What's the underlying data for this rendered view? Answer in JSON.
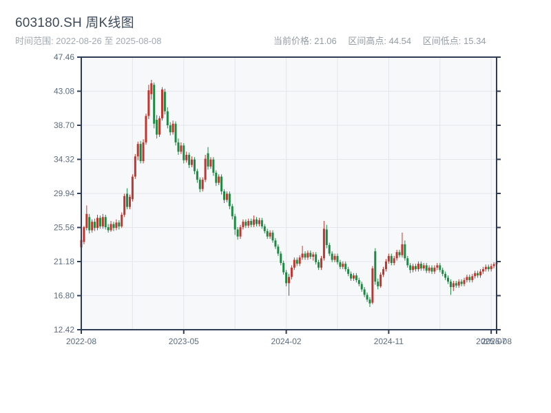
{
  "header": {
    "title": "603180.SH 周K线图",
    "subtitle": "时间范围: 2022-08-26 至 2025-08-08",
    "stats": {
      "current": "当前价格: 21.06",
      "high": "区间高点: 44.54",
      "low": "区间低点: 15.34"
    }
  },
  "chart_data": {
    "type": "candlestick",
    "symbol": "603180.SH",
    "period": "weekly",
    "title": "603180.SH 周K线图",
    "date_start": "2022-08-26",
    "date_end": "2025-08-08",
    "current_price": 21.06,
    "range_high": 44.54,
    "range_low": 15.34,
    "ylim": [
      12.42,
      47.46
    ],
    "y_ticks": [
      12.42,
      16.8,
      21.18,
      25.56,
      29.94,
      34.32,
      38.7,
      43.08,
      47.46
    ],
    "x_ticks": [
      {
        "week": 0,
        "label": "2022-08"
      },
      {
        "week": 38,
        "label": "2023-05"
      },
      {
        "week": 76,
        "label": "2024-02"
      },
      {
        "week": 114,
        "label": "2024-11"
      },
      {
        "week": 152,
        "label": "2025-07"
      },
      {
        "week": 154,
        "label": "2025-08"
      }
    ],
    "grid_x_weeks": [
      0,
      19,
      38,
      57,
      76,
      95,
      114,
      133,
      152
    ],
    "grid": true,
    "legend": "none",
    "colors": {
      "up": "#c2352e",
      "down": "#1d8a44",
      "axis": "#2e3b52",
      "grid": "#e4e6eb",
      "plot_bg": "#f7f8fa",
      "label": "#5b6b7f"
    },
    "candles": [
      [
        23.0,
        24.25,
        22.7,
        23.95
      ],
      [
        23.7,
        25.75,
        23.4,
        25.6
      ],
      [
        25.5,
        28.4,
        25.2,
        27.3
      ],
      [
        26.9,
        27.3,
        24.8,
        25.2
      ],
      [
        25.2,
        26.6,
        24.9,
        26.3
      ],
      [
        26.3,
        26.7,
        25.1,
        25.5
      ],
      [
        25.5,
        27.2,
        25.2,
        26.8
      ],
      [
        26.8,
        27.1,
        25.4,
        25.7
      ],
      [
        25.7,
        27.3,
        25.4,
        26.9
      ],
      [
        26.9,
        27.2,
        25.3,
        25.6
      ],
      [
        25.6,
        26.0,
        24.9,
        25.2
      ],
      [
        25.2,
        26.4,
        25.0,
        26.0
      ],
      [
        26.0,
        26.3,
        25.1,
        25.5
      ],
      [
        25.5,
        26.6,
        25.2,
        26.2
      ],
      [
        26.2,
        26.5,
        25.3,
        25.7
      ],
      [
        25.7,
        27.5,
        25.5,
        27.2
      ],
      [
        27.2,
        29.9,
        26.9,
        29.6
      ],
      [
        29.9,
        30.6,
        27.9,
        28.2
      ],
      [
        28.2,
        29.8,
        27.9,
        29.5
      ],
      [
        29.2,
        32.4,
        28.9,
        32.1
      ],
      [
        32.1,
        35.0,
        31.8,
        34.7
      ],
      [
        34.7,
        36.6,
        34.2,
        36.3
      ],
      [
        36.3,
        36.7,
        33.8,
        34.1
      ],
      [
        34.1,
        36.9,
        33.8,
        36.5
      ],
      [
        36.5,
        40.2,
        36.2,
        39.9
      ],
      [
        39.9,
        43.9,
        39.5,
        43.2
      ],
      [
        42.7,
        44.54,
        42.0,
        44.1
      ],
      [
        43.9,
        44.2,
        38.3,
        38.9
      ],
      [
        39.4,
        40.0,
        37.0,
        37.5
      ],
      [
        37.5,
        39.9,
        37.2,
        39.6
      ],
      [
        39.6,
        43.6,
        39.3,
        43.3
      ],
      [
        43.0,
        43.4,
        40.1,
        40.5
      ],
      [
        40.5,
        41.0,
        38.3,
        38.7
      ],
      [
        38.7,
        39.1,
        37.4,
        37.8
      ],
      [
        37.8,
        39.3,
        37.5,
        38.9
      ],
      [
        38.9,
        39.2,
        36.1,
        36.5
      ],
      [
        36.5,
        37.0,
        34.9,
        35.3
      ],
      [
        35.3,
        36.5,
        35.0,
        36.1
      ],
      [
        36.1,
        36.4,
        33.8,
        34.2
      ],
      [
        34.2,
        35.3,
        33.9,
        34.9
      ],
      [
        34.9,
        35.2,
        33.2,
        33.6
      ],
      [
        33.6,
        34.7,
        33.3,
        34.3
      ],
      [
        34.3,
        34.6,
        32.4,
        32.8
      ],
      [
        32.8,
        33.1,
        31.3,
        31.7
      ],
      [
        31.7,
        32.0,
        30.1,
        30.5
      ],
      [
        30.5,
        32.0,
        30.2,
        31.7
      ],
      [
        31.7,
        34.9,
        31.4,
        34.4
      ],
      [
        35.1,
        35.9,
        33.0,
        33.4
      ],
      [
        33.4,
        34.6,
        33.1,
        34.3
      ],
      [
        34.3,
        34.6,
        32.2,
        32.6
      ],
      [
        32.6,
        32.9,
        30.9,
        31.3
      ],
      [
        31.3,
        32.4,
        31.0,
        32.1
      ],
      [
        32.1,
        32.4,
        29.8,
        30.2
      ],
      [
        30.2,
        30.5,
        28.7,
        29.1
      ],
      [
        29.1,
        30.2,
        28.8,
        29.9
      ],
      [
        29.9,
        30.2,
        27.9,
        28.3
      ],
      [
        28.3,
        28.6,
        26.6,
        27.0
      ],
      [
        27.0,
        27.3,
        24.6,
        25.3
      ],
      [
        25.3,
        25.6,
        24.0,
        24.4
      ],
      [
        24.4,
        25.9,
        24.1,
        25.6
      ],
      [
        25.6,
        26.6,
        25.3,
        26.3
      ],
      [
        26.3,
        26.6,
        25.5,
        25.8
      ],
      [
        25.8,
        26.7,
        25.5,
        26.4
      ],
      [
        26.4,
        26.7,
        25.6,
        25.9
      ],
      [
        25.9,
        27.1,
        25.6,
        26.6
      ],
      [
        26.6,
        26.9,
        25.7,
        26.0
      ],
      [
        26.0,
        26.8,
        25.7,
        26.5
      ],
      [
        26.5,
        26.8,
        25.4,
        25.7
      ],
      [
        25.7,
        26.0,
        24.8,
        25.1
      ],
      [
        25.1,
        25.4,
        24.1,
        24.4
      ],
      [
        24.4,
        25.2,
        24.1,
        24.9
      ],
      [
        24.9,
        25.2,
        23.6,
        23.9
      ],
      [
        23.9,
        24.2,
        22.8,
        23.1
      ],
      [
        23.1,
        23.4,
        21.9,
        22.2
      ],
      [
        22.2,
        22.5,
        20.7,
        21.0
      ],
      [
        21.0,
        21.3,
        19.5,
        19.8
      ],
      [
        19.8,
        20.1,
        18.0,
        18.4
      ],
      [
        18.4,
        19.6,
        16.8,
        19.2
      ],
      [
        19.2,
        20.7,
        18.9,
        20.4
      ],
      [
        20.4,
        21.7,
        20.1,
        21.4
      ],
      [
        21.4,
        21.7,
        20.6,
        20.9
      ],
      [
        20.9,
        22.0,
        20.6,
        21.7
      ],
      [
        21.7,
        23.2,
        21.4,
        22.2
      ],
      [
        22.2,
        22.5,
        21.4,
        21.7
      ],
      [
        21.7,
        22.6,
        21.4,
        22.3
      ],
      [
        22.3,
        22.6,
        21.5,
        21.8
      ],
      [
        21.8,
        22.4,
        21.3,
        22.1
      ],
      [
        22.1,
        22.4,
        20.8,
        21.1
      ],
      [
        21.1,
        21.4,
        20.1,
        20.4
      ],
      [
        20.4,
        21.9,
        20.1,
        21.6
      ],
      [
        21.6,
        26.4,
        21.3,
        25.4
      ],
      [
        25.3,
        25.9,
        22.9,
        23.3
      ],
      [
        23.3,
        23.6,
        21.9,
        22.2
      ],
      [
        22.2,
        22.5,
        21.1,
        21.4
      ],
      [
        21.4,
        22.2,
        21.1,
        21.9
      ],
      [
        21.9,
        22.2,
        20.8,
        21.1
      ],
      [
        21.1,
        21.4,
        20.2,
        20.5
      ],
      [
        20.5,
        21.2,
        20.2,
        20.9
      ],
      [
        20.9,
        21.2,
        19.9,
        20.2
      ],
      [
        20.2,
        20.5,
        19.3,
        19.6
      ],
      [
        19.6,
        19.9,
        18.7,
        19.0
      ],
      [
        19.0,
        19.7,
        18.7,
        19.4
      ],
      [
        19.4,
        19.7,
        18.5,
        18.8
      ],
      [
        18.8,
        19.1,
        18.0,
        18.3
      ],
      [
        18.3,
        18.6,
        17.3,
        17.6
      ],
      [
        17.6,
        17.9,
        16.6,
        16.9
      ],
      [
        16.9,
        17.2,
        16.0,
        16.3
      ],
      [
        16.3,
        16.6,
        15.34,
        15.8
      ],
      [
        15.9,
        20.6,
        15.7,
        20.3
      ],
      [
        22.5,
        22.9,
        18.2,
        18.6
      ],
      [
        18.6,
        19.0,
        17.6,
        18.0
      ],
      [
        18.0,
        19.8,
        17.8,
        19.5
      ],
      [
        19.5,
        20.5,
        19.2,
        20.2
      ],
      [
        20.2,
        21.5,
        19.9,
        21.2
      ],
      [
        21.2,
        22.2,
        20.9,
        21.9
      ],
      [
        21.9,
        22.2,
        20.7,
        21.0
      ],
      [
        21.0,
        21.9,
        20.7,
        21.6
      ],
      [
        21.6,
        22.7,
        21.3,
        22.4
      ],
      [
        22.4,
        22.7,
        21.7,
        22.0
      ],
      [
        22.0,
        24.9,
        21.7,
        23.4
      ],
      [
        23.4,
        23.9,
        21.3,
        21.6
      ],
      [
        21.6,
        21.9,
        20.4,
        20.7
      ],
      [
        20.7,
        21.0,
        19.7,
        20.1
      ],
      [
        20.1,
        20.9,
        19.8,
        20.6
      ],
      [
        20.6,
        20.9,
        19.9,
        20.2
      ],
      [
        20.2,
        21.2,
        19.9,
        20.9
      ],
      [
        20.9,
        21.2,
        20.0,
        20.3
      ],
      [
        20.3,
        21.0,
        20.0,
        20.7
      ],
      [
        20.7,
        21.0,
        19.7,
        20.0
      ],
      [
        20.0,
        20.7,
        19.7,
        20.4
      ],
      [
        20.4,
        20.7,
        19.6,
        19.9
      ],
      [
        19.9,
        20.7,
        19.6,
        20.4
      ],
      [
        20.4,
        21.0,
        20.1,
        20.7
      ],
      [
        20.7,
        21.0,
        19.8,
        20.1
      ],
      [
        20.1,
        20.4,
        19.3,
        19.6
      ],
      [
        19.6,
        19.9,
        18.8,
        19.1
      ],
      [
        19.1,
        19.4,
        18.3,
        18.6
      ],
      [
        18.6,
        18.9,
        16.9,
        17.9
      ],
      [
        17.9,
        18.7,
        17.4,
        18.4
      ],
      [
        18.4,
        18.7,
        17.8,
        18.1
      ],
      [
        18.1,
        18.9,
        17.8,
        18.6
      ],
      [
        18.6,
        18.9,
        18.0,
        18.3
      ],
      [
        18.3,
        19.1,
        18.0,
        18.8
      ],
      [
        18.8,
        19.5,
        18.5,
        19.2
      ],
      [
        19.2,
        19.5,
        18.5,
        18.8
      ],
      [
        18.8,
        19.6,
        18.5,
        19.3
      ],
      [
        19.3,
        20.0,
        19.0,
        19.7
      ],
      [
        19.7,
        20.0,
        19.1,
        19.4
      ],
      [
        19.4,
        20.2,
        19.1,
        19.9
      ],
      [
        19.9,
        20.5,
        19.6,
        20.2
      ],
      [
        20.2,
        20.8,
        19.9,
        20.5
      ],
      [
        20.5,
        20.8,
        19.9,
        20.2
      ],
      [
        20.2,
        20.9,
        19.9,
        20.6
      ],
      [
        20.6,
        21.1,
        20.3,
        20.85
      ],
      [
        20.85,
        21.3,
        20.55,
        21.06
      ]
    ]
  }
}
